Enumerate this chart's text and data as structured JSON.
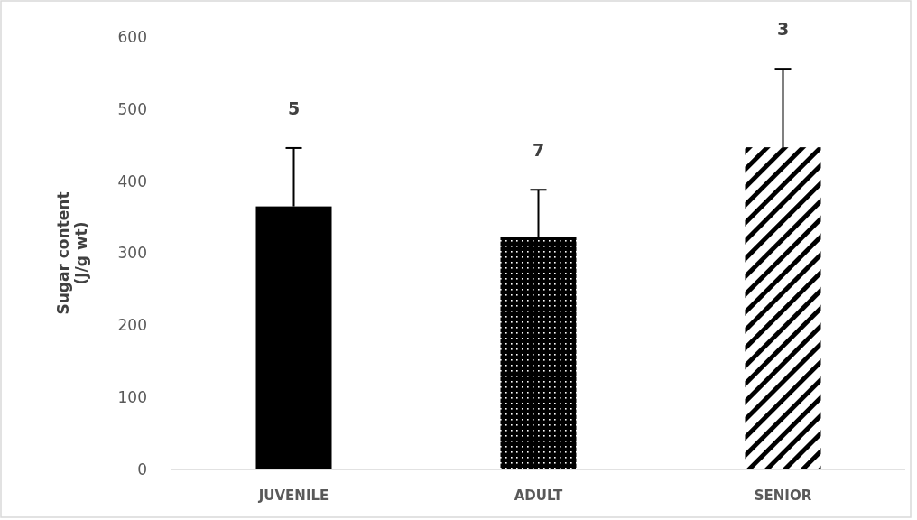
{
  "chart_data": {
    "type": "bar",
    "ylabel": "Sugar content\n(J/g wt)",
    "categories": [
      "JUVENILE",
      "ADULT",
      "SENIOR"
    ],
    "values": [
      365,
      323,
      447
    ],
    "colors": [
      "#000000",
      "#000000",
      "#000000"
    ],
    "errors": [
      [
        365,
        446
      ],
      [
        323,
        388
      ],
      [
        447,
        556
      ]
    ],
    "ylim": [
      0,
      600
    ],
    "yticks": [
      0,
      100,
      200,
      300,
      400,
      500,
      600
    ],
    "grid": false,
    "annotations": [
      "5",
      "7",
      "3"
    ]
  }
}
